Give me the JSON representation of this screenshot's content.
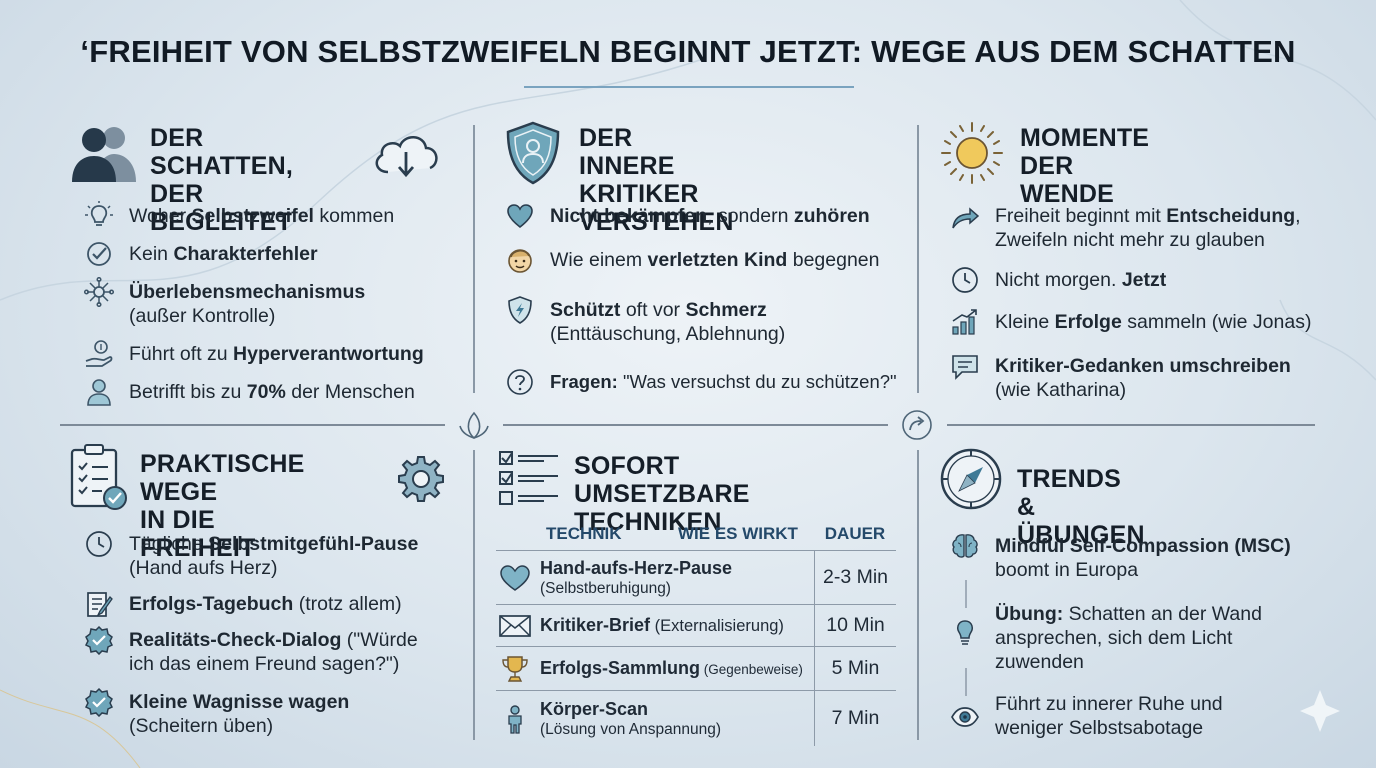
{
  "title": "‘FREIHEIT VON SELBSTZWEIFELN BEGINNT JETZT: WEGE AUS DEM SCHATTEN",
  "panels": {
    "schatten": {
      "heading": [
        "DER SCHATTEN,",
        "DER BEGLEITET"
      ],
      "items": [
        {
          "pre": "Woher ",
          "bold": "Selbstzweifel",
          "post": " kommen",
          "icon": "lightbulb-icon"
        },
        {
          "pre": "Kein ",
          "bold": "Charakterfehler",
          "post": "",
          "icon": "check-circle-icon"
        },
        {
          "pre": "",
          "bold": "Überlebensmechanismus",
          "post": "",
          "line2": "(außer Kontrolle)",
          "icon": "network-icon"
        },
        {
          "pre": "Führt oft zu ",
          "bold": "Hyperverantwortung",
          "post": "",
          "icon": "hand-coin-icon"
        },
        {
          "pre": "Betrifft bis zu ",
          "bold": "70%",
          "post": " der Menschen",
          "icon": "person-icon"
        }
      ]
    },
    "kritiker": {
      "heading": [
        "DER INNERE KRITIKER",
        "VERSTEHEN"
      ],
      "items": [
        {
          "pre": "",
          "bold": "Nicht bekämpfen",
          "post": ", sondern ",
          "bold2": "zuhören",
          "icon": "heart-icon"
        },
        {
          "pre": "Wie einem ",
          "bold": "verletzten Kind",
          "post": " begegnen",
          "icon": "child-face-icon"
        },
        {
          "pre": "",
          "bold": "Schützt",
          "post": " oft vor ",
          "bold2": "Schmerz",
          "line2": "(Enttäuschung, Ablehnung)",
          "icon": "shield-bolt-icon"
        },
        {
          "pre": "",
          "bold": "Fragen:",
          "post": " \"Was versuchst du zu schützen?\"",
          "icon": "question-icon"
        }
      ]
    },
    "wende": {
      "heading": [
        "MOMENTE DER",
        "WENDE"
      ],
      "items": [
        {
          "pre": "Freiheit beginnt mit ",
          "bold": "Entscheidung",
          "post": ",",
          "line2": "Zweifeln nicht mehr zu glauben",
          "icon": "arrow-share-icon"
        },
        {
          "pre": "Nicht morgen. ",
          "bold": "Jetzt",
          "post": "",
          "icon": "clock-icon"
        },
        {
          "pre": "Kleine ",
          "bold": "Erfolge",
          "post": " sammeln (wie Jonas)",
          "icon": "growth-chart-icon"
        },
        {
          "pre": "",
          "bold": "Kritiker-Gedanken umschreiben",
          "post": "",
          "line2": "(wie Katharina)",
          "icon": "speech-bubble-icon"
        }
      ]
    },
    "wege": {
      "heading": [
        "PRAKTISCHE WEGE",
        "IN DIE FREIHEIT"
      ],
      "items": [
        {
          "pre": "Tägliche ",
          "bold": "Selbstmitgefühl-Pause",
          "post": "",
          "line2": "(Hand aufs Herz)",
          "icon": "clock-icon"
        },
        {
          "pre": "",
          "bold": "Erfolgs-Tagebuch",
          "post": " (trotz allem)",
          "icon": "notebook-pen-icon"
        },
        {
          "pre": "",
          "bold": "Realitäts-Check-Dialog",
          "post": " (\"Würde",
          "line2": "ich das einem Freund sagen?\")",
          "icon": "badge-check-icon"
        },
        {
          "pre": "",
          "bold": "Kleine Wagnisse wagen",
          "post": "",
          "line2": "(Scheitern üben)",
          "icon": "badge-check-icon"
        }
      ]
    },
    "techniken": {
      "heading": [
        "SOFORT UMSETZBARE",
        "TECHNIKEN"
      ],
      "table": {
        "headers": [
          "TECHNIK",
          "WIE ES WIRKT",
          "DAUER"
        ],
        "rows": [
          {
            "name": "Hand-aufs-Herz-Pause",
            "inline": "",
            "sub": "(Selbstberuhigung)",
            "dauer": "2-3 Min",
            "icon": "heart-icon"
          },
          {
            "name": "Kritiker-Brief",
            "inline": " (Externalisierung)",
            "sub": "",
            "dauer": "10 Min",
            "icon": "envelope-icon"
          },
          {
            "name": "Erfolgs-Sammlung",
            "inline": " (Gegenbeweise)",
            "sub": "",
            "dauer": "5 Min",
            "icon": "trophy-icon"
          },
          {
            "name": "Körper-Scan",
            "inline": "",
            "sub": "(Lösung von Anspannung)",
            "dauer": "7 Min",
            "icon": "person-icon"
          }
        ]
      }
    },
    "trends": {
      "heading": [
        "TRENDS & ÜBUNGEN"
      ],
      "items": [
        {
          "pre": "",
          "bold": "Mindful Self-Compassion (MSC)",
          "post": "",
          "line2": "boomt in Europa",
          "icon": "brain-icon"
        },
        {
          "pre": "",
          "bold": "Übung:",
          "post": " Schatten an der Wand",
          "line2": "ansprechen, sich dem Licht",
          "line3": "zuwenden",
          "icon": "lightbulb-icon"
        },
        {
          "pre": "Führt zu innerer Ruhe und",
          "bold": "",
          "post": "",
          "line2": "weniger Selbstsabotage",
          "icon": "eye-icon"
        }
      ]
    }
  },
  "colors": {
    "accent": "#3f7a96",
    "icon_fill": "#8fbfd0",
    "dark": "#1f3547"
  }
}
